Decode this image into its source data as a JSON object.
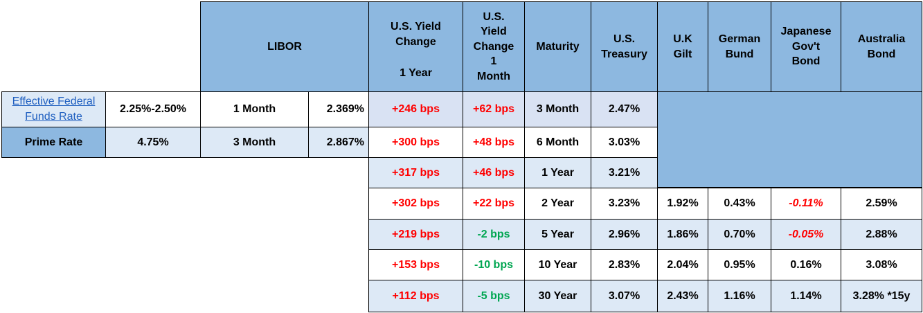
{
  "header": {
    "libor": "LIBOR",
    "yield_1y": [
      "U.S. Yield",
      "Change",
      "",
      "1 Year"
    ],
    "yield_1m": [
      "U.S.",
      "Yield",
      "Change",
      "1",
      "Month"
    ],
    "maturity": "Maturity",
    "us_treasury": [
      "U.S.",
      "Treasury"
    ],
    "uk_gilt": [
      "U.K",
      "Gilt"
    ],
    "german_bund": [
      "German",
      "Bund"
    ],
    "japanese": [
      "Japanese",
      "Gov't",
      "Bond"
    ],
    "australia": [
      "Australia",
      "Bond"
    ]
  },
  "left_rows": [
    {
      "label": "Effective Federal Funds Rate",
      "value": "2.25%-2.50%",
      "libor_term": "1 Month",
      "libor_rate": "2.369%"
    },
    {
      "label": "Prime Rate",
      "value": "4.75%",
      "libor_term": "3 Month",
      "libor_rate": "2.867%"
    }
  ],
  "rows": [
    {
      "change_1y": "+246 bps",
      "change_1m": "+62 bps",
      "change_1m_color": "red",
      "maturity": "3 Month",
      "us": "2.47%"
    },
    {
      "change_1y": "+300 bps",
      "change_1m": "+48 bps",
      "change_1m_color": "red",
      "maturity": "6 Month",
      "us": "3.03%"
    },
    {
      "change_1y": "+317 bps",
      "change_1m": "+46 bps",
      "change_1m_color": "red",
      "maturity": "1 Year",
      "us": "3.21%"
    },
    {
      "change_1y": "+302 bps",
      "change_1m": "+22 bps",
      "change_1m_color": "red",
      "maturity": "2 Year",
      "us": "3.23%",
      "uk": "1.92%",
      "de": "0.43%",
      "jp": "-0.11%",
      "au": "2.59%"
    },
    {
      "change_1y": "+219 bps",
      "change_1m": "-2 bps",
      "change_1m_color": "green",
      "maturity": "5 Year",
      "us": "2.96%",
      "uk": "1.86%",
      "de": "0.70%",
      "jp": "-0.05%",
      "au": "2.88%"
    },
    {
      "change_1y": "+153 bps",
      "change_1m": "-10 bps",
      "change_1m_color": "green",
      "maturity": "10 Year",
      "us": "2.83%",
      "uk": "2.04%",
      "de": "0.95%",
      "jp": "0.16%",
      "au": "3.08%"
    },
    {
      "change_1y": "+112 bps",
      "change_1m": "-5 bps",
      "change_1m_color": "green",
      "maturity": "30 Year",
      "us": "3.07%",
      "uk": "2.43%",
      "de": "1.16%",
      "jp": "1.14%",
      "au": "3.28% *15y"
    }
  ],
  "colors": {
    "header": "#8db8e0",
    "light": "#dde9f6",
    "red": "#ff0000",
    "green": "#00a651",
    "link": "#1f5fc0"
  }
}
